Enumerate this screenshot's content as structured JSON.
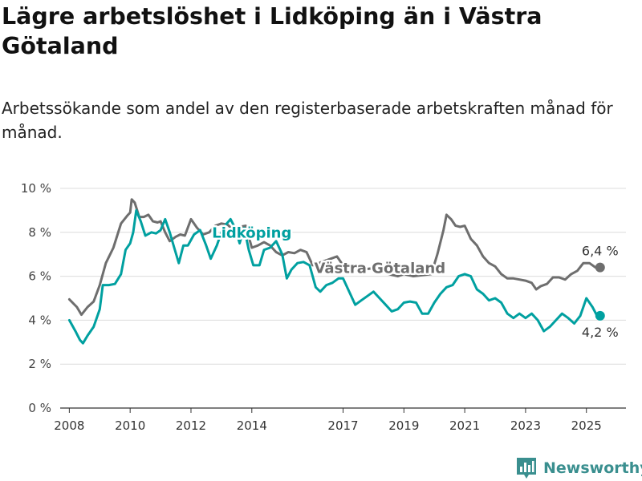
{
  "title": "Lägre arbetslöshet i Lidköping än i Västra Götaland",
  "subtitle": "Arbetssökande som andel av den registerbaserade arbetskraften månad för månad.",
  "logo": {
    "text": "Newsworthy",
    "icon": "bar-chart-logo-icon",
    "color": "#3a8f8f"
  },
  "chart_data": {
    "type": "line",
    "ylim": [
      0,
      10
    ],
    "yticks": [
      0,
      2,
      4,
      6,
      8,
      10
    ],
    "ytick_labels": [
      "0 %",
      "2 %",
      "4 %",
      "6 %",
      "8 %",
      "10 %"
    ],
    "xlim": [
      2007.7,
      2026.3
    ],
    "xticks": [
      2008,
      2010,
      2012,
      2014,
      2017,
      2019,
      2021,
      2023,
      2025
    ],
    "xtick_labels": [
      "2008",
      "2010",
      "2012",
      "2014",
      "2017",
      "2019",
      "2021",
      "2023",
      "2025"
    ],
    "grid": true,
    "series": [
      {
        "name": "Västra Götaland",
        "color": "#6e6e6e",
        "end_label": "6,4 %",
        "points": [
          [
            2008.0,
            4.95
          ],
          [
            2008.25,
            4.6
          ],
          [
            2008.4,
            4.25
          ],
          [
            2008.6,
            4.6
          ],
          [
            2008.8,
            4.85
          ],
          [
            2009.0,
            5.6
          ],
          [
            2009.2,
            6.6
          ],
          [
            2009.45,
            7.3
          ],
          [
            2009.7,
            8.4
          ],
          [
            2009.9,
            8.75
          ],
          [
            2010.0,
            8.9
          ],
          [
            2010.05,
            9.5
          ],
          [
            2010.15,
            9.35
          ],
          [
            2010.3,
            8.7
          ],
          [
            2010.45,
            8.7
          ],
          [
            2010.6,
            8.8
          ],
          [
            2010.75,
            8.5
          ],
          [
            2010.9,
            8.45
          ],
          [
            2011.0,
            8.5
          ],
          [
            2011.15,
            8.0
          ],
          [
            2011.3,
            7.6
          ],
          [
            2011.5,
            7.8
          ],
          [
            2011.65,
            7.9
          ],
          [
            2011.8,
            7.85
          ],
          [
            2012.0,
            8.6
          ],
          [
            2012.2,
            8.2
          ],
          [
            2012.4,
            7.9
          ],
          [
            2012.6,
            8.0
          ],
          [
            2012.8,
            8.3
          ],
          [
            2013.0,
            8.4
          ],
          [
            2013.2,
            8.35
          ],
          [
            2013.4,
            8.1
          ],
          [
            2013.6,
            8.25
          ],
          [
            2013.8,
            8.3
          ],
          [
            2014.0,
            7.3
          ],
          [
            2014.2,
            7.4
          ],
          [
            2014.4,
            7.55
          ],
          [
            2014.6,
            7.4
          ],
          [
            2014.8,
            7.1
          ],
          [
            2015.0,
            6.95
          ],
          [
            2015.2,
            7.1
          ],
          [
            2015.4,
            7.05
          ],
          [
            2015.6,
            7.2
          ],
          [
            2015.8,
            7.1
          ],
          [
            2016.0,
            6.5
          ],
          [
            2016.2,
            6.6
          ],
          [
            2016.4,
            6.7
          ],
          [
            2016.6,
            6.8
          ],
          [
            2016.8,
            6.9
          ],
          [
            2017.0,
            6.5
          ],
          [
            2017.3,
            6.5
          ],
          [
            2017.6,
            6.3
          ],
          [
            2017.9,
            6.35
          ],
          [
            2018.2,
            6.3
          ],
          [
            2018.5,
            6.1
          ],
          [
            2018.8,
            6.0
          ],
          [
            2019.0,
            6.1
          ],
          [
            2019.3,
            6.0
          ],
          [
            2019.6,
            6.05
          ],
          [
            2019.9,
            6.1
          ],
          [
            2020.1,
            7.0
          ],
          [
            2020.3,
            8.1
          ],
          [
            2020.4,
            8.8
          ],
          [
            2020.55,
            8.6
          ],
          [
            2020.7,
            8.3
          ],
          [
            2020.85,
            8.25
          ],
          [
            2021.0,
            8.3
          ],
          [
            2021.2,
            7.7
          ],
          [
            2021.4,
            7.4
          ],
          [
            2021.6,
            6.9
          ],
          [
            2021.8,
            6.6
          ],
          [
            2022.0,
            6.45
          ],
          [
            2022.2,
            6.1
          ],
          [
            2022.4,
            5.9
          ],
          [
            2022.6,
            5.9
          ],
          [
            2022.8,
            5.85
          ],
          [
            2023.0,
            5.8
          ],
          [
            2023.2,
            5.7
          ],
          [
            2023.35,
            5.4
          ],
          [
            2023.5,
            5.55
          ],
          [
            2023.7,
            5.65
          ],
          [
            2023.9,
            5.95
          ],
          [
            2024.1,
            5.95
          ],
          [
            2024.3,
            5.85
          ],
          [
            2024.5,
            6.1
          ],
          [
            2024.7,
            6.25
          ],
          [
            2024.9,
            6.6
          ],
          [
            2025.1,
            6.6
          ],
          [
            2025.3,
            6.4
          ],
          [
            2025.45,
            6.4
          ]
        ]
      },
      {
        "name": "Lidköping",
        "color": "#00a0a0",
        "end_label": "4,2 %",
        "points": [
          [
            2008.0,
            4.0
          ],
          [
            2008.2,
            3.5
          ],
          [
            2008.35,
            3.1
          ],
          [
            2008.45,
            2.95
          ],
          [
            2008.6,
            3.3
          ],
          [
            2008.8,
            3.7
          ],
          [
            2009.0,
            4.5
          ],
          [
            2009.1,
            5.6
          ],
          [
            2009.3,
            5.6
          ],
          [
            2009.5,
            5.65
          ],
          [
            2009.7,
            6.1
          ],
          [
            2009.85,
            7.2
          ],
          [
            2010.0,
            7.5
          ],
          [
            2010.1,
            8.0
          ],
          [
            2010.2,
            9.0
          ],
          [
            2010.35,
            8.5
          ],
          [
            2010.5,
            7.85
          ],
          [
            2010.7,
            8.0
          ],
          [
            2010.85,
            7.95
          ],
          [
            2011.0,
            8.1
          ],
          [
            2011.15,
            8.6
          ],
          [
            2011.3,
            8.0
          ],
          [
            2011.45,
            7.3
          ],
          [
            2011.6,
            6.6
          ],
          [
            2011.75,
            7.4
          ],
          [
            2011.9,
            7.4
          ],
          [
            2012.1,
            7.9
          ],
          [
            2012.3,
            8.1
          ],
          [
            2012.5,
            7.4
          ],
          [
            2012.65,
            6.8
          ],
          [
            2012.85,
            7.4
          ],
          [
            2013.05,
            8.2
          ],
          [
            2013.3,
            8.6
          ],
          [
            2013.45,
            8.2
          ],
          [
            2013.6,
            7.5
          ],
          [
            2013.75,
            8.2
          ],
          [
            2013.9,
            7.2
          ],
          [
            2014.05,
            6.5
          ],
          [
            2014.25,
            6.5
          ],
          [
            2014.4,
            7.2
          ],
          [
            2014.6,
            7.3
          ],
          [
            2014.8,
            7.6
          ],
          [
            2015.0,
            7.0
          ],
          [
            2015.15,
            5.9
          ],
          [
            2015.3,
            6.3
          ],
          [
            2015.5,
            6.6
          ],
          [
            2015.7,
            6.65
          ],
          [
            2015.9,
            6.5
          ],
          [
            2016.1,
            5.5
          ],
          [
            2016.25,
            5.3
          ],
          [
            2016.45,
            5.6
          ],
          [
            2016.65,
            5.7
          ],
          [
            2016.85,
            5.9
          ],
          [
            2017.0,
            5.9
          ],
          [
            2017.2,
            5.3
          ],
          [
            2017.4,
            4.7
          ],
          [
            2017.6,
            4.9
          ],
          [
            2017.8,
            5.1
          ],
          [
            2018.0,
            5.3
          ],
          [
            2018.2,
            5.0
          ],
          [
            2018.4,
            4.7
          ],
          [
            2018.6,
            4.4
          ],
          [
            2018.8,
            4.5
          ],
          [
            2019.0,
            4.8
          ],
          [
            2019.2,
            4.85
          ],
          [
            2019.4,
            4.8
          ],
          [
            2019.6,
            4.3
          ],
          [
            2019.8,
            4.3
          ],
          [
            2020.0,
            4.8
          ],
          [
            2020.2,
            5.2
          ],
          [
            2020.4,
            5.5
          ],
          [
            2020.6,
            5.6
          ],
          [
            2020.8,
            6.0
          ],
          [
            2021.0,
            6.1
          ],
          [
            2021.2,
            6.0
          ],
          [
            2021.4,
            5.4
          ],
          [
            2021.6,
            5.2
          ],
          [
            2021.8,
            4.9
          ],
          [
            2022.0,
            5.0
          ],
          [
            2022.2,
            4.8
          ],
          [
            2022.4,
            4.3
          ],
          [
            2022.6,
            4.1
          ],
          [
            2022.8,
            4.3
          ],
          [
            2023.0,
            4.1
          ],
          [
            2023.2,
            4.3
          ],
          [
            2023.4,
            4.0
          ],
          [
            2023.6,
            3.5
          ],
          [
            2023.8,
            3.7
          ],
          [
            2024.0,
            4.0
          ],
          [
            2024.2,
            4.3
          ],
          [
            2024.4,
            4.1
          ],
          [
            2024.6,
            3.85
          ],
          [
            2024.8,
            4.2
          ],
          [
            2025.0,
            5.0
          ],
          [
            2025.2,
            4.6
          ],
          [
            2025.35,
            4.2
          ],
          [
            2025.45,
            4.2
          ]
        ]
      }
    ]
  }
}
